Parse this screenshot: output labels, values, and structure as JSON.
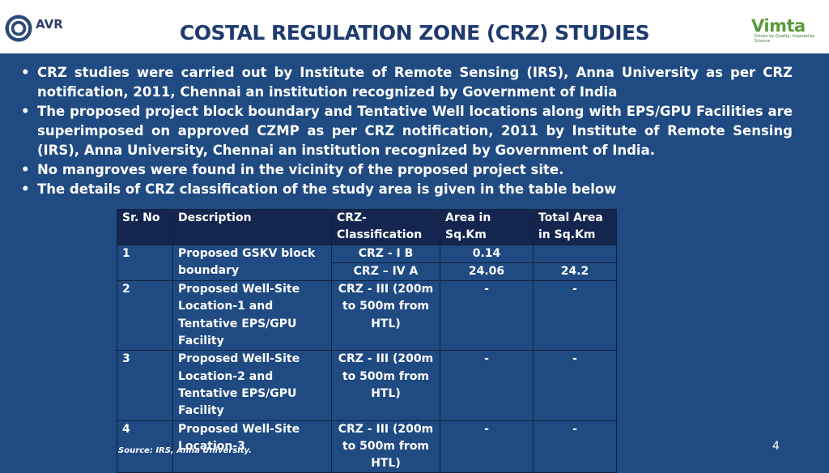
{
  "header": {
    "left_logo_text": "AVR",
    "title": "COSTAL REGULATION ZONE (CRZ) STUDIES",
    "right_logo_text": "Vimta",
    "right_logo_tagline": "Driven by Quality, Inspired by Science"
  },
  "bullets": [
    "CRZ studies were carried out by Institute of Remote Sensing (IRS), Anna University as per CRZ notification, 2011, Chennai an institution recognized by Government of India",
    "The proposed project block boundary and Tentative Well locations along with EPS/GPU Facilities are superimposed on approved CZMP as per CRZ notification, 2011 by Institute of Remote Sensing (IRS), Anna University, Chennai an institution recognized by Government of India.",
    "No mangroves were found in the vicinity of the proposed project site.",
    "The details of CRZ classification of the study area is given in the table below"
  ],
  "bullet_symbol": "•",
  "table": {
    "headers": [
      "Sr. No",
      "Description",
      "CRZ-Classification",
      "Area in Sq.Km",
      "Total Area in Sq.Km"
    ],
    "row1": {
      "sr": "1",
      "desc": "Proposed GSKV block boundary",
      "class_a": "CRZ - I B",
      "area_a": "0.14",
      "total_a": "",
      "class_b": "CRZ – IV A",
      "area_b": "24.06",
      "total_b": "24.2"
    },
    "row2": {
      "sr": "2",
      "desc": "Proposed Well-Site Location-1 and Tentative EPS/GPU Facility",
      "class": "CRZ - III (200m to 500m from HTL)",
      "area": "-",
      "total": "-"
    },
    "row3": {
      "sr": "3",
      "desc": "Proposed Well-Site Location-2 and Tentative EPS/GPU Facility",
      "class": "CRZ - III (200m to 500m from HTL)",
      "area": "-",
      "total": "-"
    },
    "row4": {
      "sr": "4",
      "desc": "Proposed Well-Site Location-3",
      "class": "CRZ - III (200m to 500m from HTL)",
      "area": "-",
      "total": "-"
    }
  },
  "source_note": "Source: IRS, Anna University.",
  "page_number": "4",
  "colors": {
    "background": "#1f4a82",
    "title": "#1f3b6e",
    "table_header": "#14254f",
    "vimta_green": "#5a9a3c"
  }
}
